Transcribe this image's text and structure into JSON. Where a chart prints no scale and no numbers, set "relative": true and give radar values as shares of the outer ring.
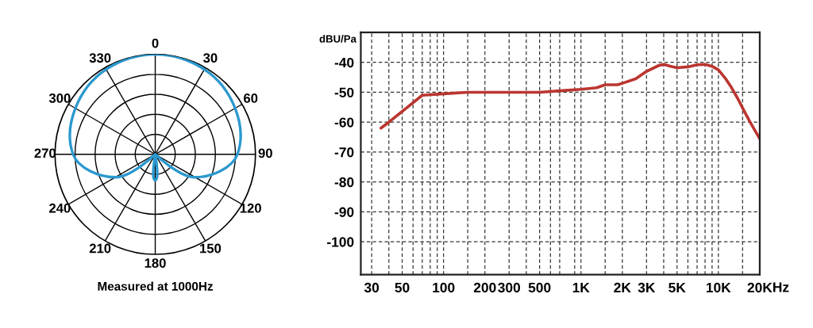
{
  "chart_data": [
    {
      "type": "radar",
      "relative": true,
      "grid": true,
      "categories": [
        "0",
        "30",
        "60",
        "90",
        "120",
        "150",
        "180",
        "210",
        "240",
        "270",
        "300",
        "330"
      ],
      "series": [
        {
          "color": "#2b98cf",
          "values": [
            1.0,
            0.98,
            0.92,
            0.82,
            0.46,
            0,
            0.26,
            0,
            0.46,
            0.82,
            0.92,
            0.98
          ]
        }
      ],
      "annotations": [
        "Measured at 1000Hz"
      ]
    },
    {
      "type": "line",
      "log": "x",
      "grid": true,
      "ylabel": "dBU/Pa",
      "xlabel": "Hz",
      "x": [
        35,
        40,
        70,
        100,
        150,
        200,
        300,
        500,
        700,
        1000,
        1300,
        1500,
        1850,
        2000,
        2500,
        3000,
        3700,
        4000,
        4500,
        5000,
        6000,
        7000,
        8000,
        9000,
        10000,
        11300,
        12300,
        13800,
        15300,
        16800,
        18300,
        20000
      ],
      "series": [
        {
          "color": "#bb3530",
          "values": [
            -62,
            -60,
            -51,
            -50.5,
            -50,
            -50,
            -50,
            -50,
            -49.5,
            -49,
            -48.5,
            -47.5,
            -47.5,
            -47,
            -45.5,
            -43,
            -41,
            -40.7,
            -41.3,
            -41.8,
            -41.5,
            -40.8,
            -40.7,
            -41.3,
            -42.5,
            -45.5,
            -48,
            -52,
            -56,
            -59.5,
            -62.5,
            -65.5
          ]
        }
      ],
      "xlim": [
        25,
        20000
      ],
      "ylim": [
        -111,
        -30
      ],
      "xticks": [
        30,
        {
          "value": 40,
          "label": null
        },
        50,
        {
          "value": 60,
          "label": null
        },
        {
          "value": 70,
          "label": null
        },
        {
          "value": 80,
          "label": null
        },
        {
          "value": 90,
          "label": null
        },
        100,
        {
          "value": 150,
          "label": null
        },
        200,
        300,
        {
          "value": 400,
          "label": null
        },
        500,
        {
          "value": 600,
          "label": null
        },
        {
          "value": 700,
          "label": null
        },
        {
          "value": 900,
          "label": null
        },
        {
          "value": 1000,
          "label": "1K"
        },
        {
          "value": 1500,
          "label": null
        },
        {
          "value": 2000,
          "label": "2K"
        },
        {
          "value": 3000,
          "label": "3K"
        },
        {
          "value": 4000,
          "label": null
        },
        {
          "value": 5000,
          "label": "5K"
        },
        {
          "value": 6000,
          "label": null
        },
        {
          "value": 7000,
          "label": null
        },
        {
          "value": 8000,
          "label": null
        },
        {
          "value": 9000,
          "label": null
        },
        {
          "value": 10000,
          "label": "10K"
        },
        {
          "value": 15000,
          "label": null
        },
        {
          "value": 20000,
          "label": "20K"
        }
      ],
      "yticks": [
        -100,
        -90,
        -80,
        -70,
        -60,
        -50,
        -40
      ]
    }
  ]
}
